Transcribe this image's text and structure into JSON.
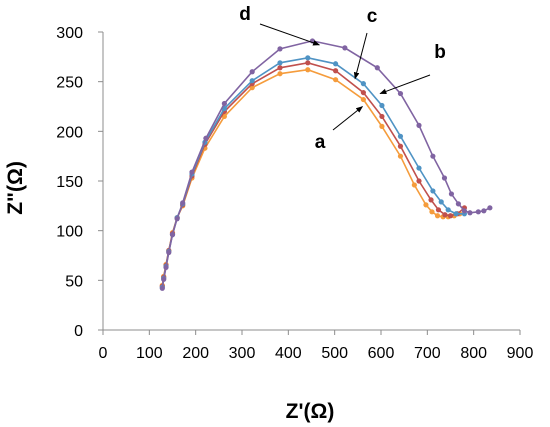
{
  "chart_data": {
    "type": "scatter",
    "title": "",
    "xlabel": "Z'(Ω)",
    "ylabel": "Z\"(Ω)",
    "xlim": [
      0,
      900
    ],
    "ylim": [
      0,
      300
    ],
    "xticks": [
      "0",
      "100",
      "200",
      "300",
      "400",
      "500",
      "600",
      "700",
      "800",
      "900"
    ],
    "yticks": [
      "0",
      "50",
      "100",
      "150",
      "200",
      "250",
      "300"
    ],
    "grid": false,
    "legend": "none",
    "series": [
      {
        "id": "a",
        "color": "#f59c3c",
        "x": [
          128,
          131,
          136,
          142,
          150,
          160,
          172,
          192,
          220,
          262,
          322,
          382,
          442,
          502,
          562,
          602,
          642,
          672,
          697,
          710,
          722,
          734,
          745,
          758,
          770
        ],
        "y": [
          45,
          54,
          66,
          80,
          98,
          113,
          125,
          153,
          183,
          215,
          244,
          258,
          262,
          252,
          232,
          205,
          175,
          146,
          126,
          119,
          115,
          114,
          114,
          115,
          117
        ]
      },
      {
        "id": "b",
        "color": "#c0504d",
        "x": [
          128,
          131,
          136,
          142,
          150,
          160,
          172,
          192,
          220,
          262,
          322,
          382,
          442,
          502,
          562,
          602,
          642,
          682,
          708,
          724,
          738,
          750,
          765,
          780
        ],
        "y": [
          44,
          53,
          65,
          80,
          97,
          113,
          126,
          155,
          187,
          220,
          248,
          264,
          269,
          261,
          239,
          215,
          185,
          150,
          131,
          121,
          116,
          115,
          117,
          123
        ]
      },
      {
        "id": "c",
        "color": "#4f93c4",
        "x": [
          128,
          131,
          136,
          142,
          150,
          160,
          172,
          192,
          220,
          262,
          322,
          382,
          442,
          502,
          562,
          602,
          642,
          682,
          712,
          730,
          745,
          762,
          780
        ],
        "y": [
          43,
          52,
          64,
          79,
          96,
          113,
          127,
          157,
          189,
          223,
          251,
          269,
          274,
          268,
          248,
          226,
          195,
          163,
          140,
          129,
          121,
          117,
          117
        ]
      },
      {
        "id": "d",
        "color": "#8064a2",
        "x": [
          128,
          131,
          136,
          142,
          150,
          160,
          172,
          192,
          222,
          262,
          322,
          382,
          452,
          522,
          592,
          642,
          682,
          712,
          737,
          752,
          767,
          780,
          792,
          810,
          822,
          835
        ],
        "y": [
          42,
          51,
          63,
          78,
          96,
          112,
          128,
          159,
          193,
          228,
          260,
          283,
          291,
          284,
          264,
          238,
          206,
          175,
          153,
          137,
          127,
          120,
          118,
          119,
          120,
          123
        ]
      }
    ],
    "annotations": [
      {
        "label": "a",
        "x": 560,
        "y": 225
      },
      {
        "label": "b",
        "x": 598,
        "y": 238
      },
      {
        "label": "c",
        "x": 544,
        "y": 253
      },
      {
        "label": "d",
        "x": 467,
        "y": 287
      }
    ]
  }
}
